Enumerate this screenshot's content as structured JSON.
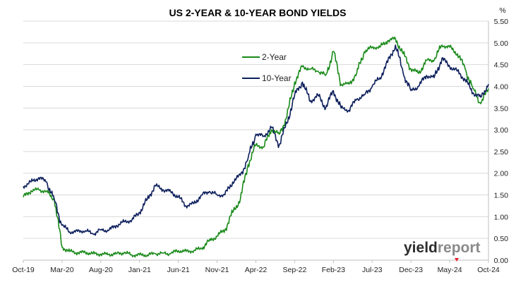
{
  "chart_data": {
    "type": "line",
    "title": "US 2-YEAR & 10-YEAR BOND YIELDS",
    "y_unit": "%",
    "ylim": [
      0,
      5.5
    ],
    "y_ticks": [
      "0.00",
      "0.50",
      "1.00",
      "1.50",
      "2.00",
      "2.50",
      "3.00",
      "3.50",
      "4.00",
      "4.50",
      "5.00",
      "5.50"
    ],
    "y_axis_side": "right",
    "grid": "horizontal",
    "x_tick_labels": [
      "Oct-19",
      "Mar-20",
      "Aug-20",
      "Jan-21",
      "Jun-21",
      "Nov-21",
      "Apr-22",
      "Sep-22",
      "Feb-23",
      "Jul-23",
      "Dec-23",
      "May-24",
      "Oct-24"
    ],
    "legend_position": "upper-center",
    "series": [
      {
        "name": "2-Year",
        "color": "#1a8a1a",
        "points": [
          [
            "Oct-19",
            1.45
          ],
          [
            "Nov-19",
            1.6
          ],
          [
            "Dec-19",
            1.62
          ],
          [
            "Jan-20",
            1.58
          ],
          [
            "Feb-20",
            1.4
          ],
          [
            "Mar-20",
            0.3
          ],
          [
            "Apr-20",
            0.2
          ],
          [
            "May-20",
            0.17
          ],
          [
            "Jun-20",
            0.18
          ],
          [
            "Jul-20",
            0.15
          ],
          [
            "Aug-20",
            0.14
          ],
          [
            "Sep-20",
            0.13
          ],
          [
            "Oct-20",
            0.15
          ],
          [
            "Nov-20",
            0.17
          ],
          [
            "Dec-20",
            0.12
          ],
          [
            "Jan-21",
            0.12
          ],
          [
            "Feb-21",
            0.12
          ],
          [
            "Mar-21",
            0.15
          ],
          [
            "Apr-21",
            0.16
          ],
          [
            "May-21",
            0.15
          ],
          [
            "Jun-21",
            0.22
          ],
          [
            "Jul-21",
            0.2
          ],
          [
            "Aug-21",
            0.22
          ],
          [
            "Sep-21",
            0.27
          ],
          [
            "Oct-21",
            0.45
          ],
          [
            "Nov-21",
            0.55
          ],
          [
            "Dec-21",
            0.7
          ],
          [
            "Jan-22",
            1.1
          ],
          [
            "Feb-22",
            1.4
          ],
          [
            "Mar-22",
            2.2
          ],
          [
            "Apr-22",
            2.65
          ],
          [
            "May-22",
            2.6
          ],
          [
            "Jun-22",
            3.0
          ],
          [
            "Jul-22",
            2.9
          ],
          [
            "Aug-22",
            3.3
          ],
          [
            "Sep-22",
            4.1
          ],
          [
            "Oct-22",
            4.45
          ],
          [
            "Nov-22",
            4.4
          ],
          [
            "Dec-22",
            4.35
          ],
          [
            "Jan-23",
            4.25
          ],
          [
            "Feb-23",
            4.8
          ],
          [
            "Mar-23",
            4.05
          ],
          [
            "Apr-23",
            4.05
          ],
          [
            "May-23",
            4.3
          ],
          [
            "Jun-23",
            4.8
          ],
          [
            "Jul-23",
            4.9
          ],
          [
            "Aug-23",
            4.9
          ],
          [
            "Sep-23",
            5.05
          ],
          [
            "Oct-23",
            5.1
          ],
          [
            "Nov-23",
            4.75
          ],
          [
            "Dec-23",
            4.4
          ],
          [
            "Jan-24",
            4.3
          ],
          [
            "Feb-24",
            4.6
          ],
          [
            "Mar-24",
            4.6
          ],
          [
            "Apr-24",
            4.95
          ],
          [
            "May-24",
            4.9
          ],
          [
            "Jun-24",
            4.75
          ],
          [
            "Jul-24",
            4.4
          ],
          [
            "Aug-24",
            3.95
          ],
          [
            "Sep-24",
            3.6
          ],
          [
            "Oct-24",
            3.95
          ]
        ]
      },
      {
        "name": "10-Year",
        "color": "#0d1f5c",
        "points": [
          [
            "Oct-19",
            1.7
          ],
          [
            "Nov-19",
            1.8
          ],
          [
            "Dec-19",
            1.9
          ],
          [
            "Jan-20",
            1.8
          ],
          [
            "Feb-20",
            1.4
          ],
          [
            "Mar-20",
            0.8
          ],
          [
            "Apr-20",
            0.65
          ],
          [
            "May-20",
            0.66
          ],
          [
            "Jun-20",
            0.68
          ],
          [
            "Jul-20",
            0.6
          ],
          [
            "Aug-20",
            0.7
          ],
          [
            "Sep-20",
            0.68
          ],
          [
            "Oct-20",
            0.8
          ],
          [
            "Nov-20",
            0.88
          ],
          [
            "Dec-20",
            0.92
          ],
          [
            "Jan-21",
            1.1
          ],
          [
            "Feb-21",
            1.4
          ],
          [
            "Mar-21",
            1.72
          ],
          [
            "Apr-21",
            1.62
          ],
          [
            "May-21",
            1.58
          ],
          [
            "Jun-21",
            1.45
          ],
          [
            "Jul-21",
            1.25
          ],
          [
            "Aug-21",
            1.3
          ],
          [
            "Sep-21",
            1.5
          ],
          [
            "Oct-21",
            1.58
          ],
          [
            "Nov-21",
            1.5
          ],
          [
            "Dec-21",
            1.5
          ],
          [
            "Jan-22",
            1.8
          ],
          [
            "Feb-22",
            1.95
          ],
          [
            "Mar-22",
            2.35
          ],
          [
            "Apr-22",
            2.9
          ],
          [
            "May-22",
            2.85
          ],
          [
            "Jun-22",
            3.05
          ],
          [
            "Jul-22",
            2.65
          ],
          [
            "Aug-22",
            3.15
          ],
          [
            "Sep-22",
            3.8
          ],
          [
            "Oct-22",
            4.1
          ],
          [
            "Nov-22",
            3.65
          ],
          [
            "Dec-22",
            3.8
          ],
          [
            "Jan-23",
            3.5
          ],
          [
            "Feb-23",
            3.9
          ],
          [
            "Mar-23",
            3.5
          ],
          [
            "Apr-23",
            3.45
          ],
          [
            "May-23",
            3.7
          ],
          [
            "Jun-23",
            3.8
          ],
          [
            "Jul-23",
            4.0
          ],
          [
            "Aug-23",
            4.2
          ],
          [
            "Sep-23",
            4.55
          ],
          [
            "Oct-23",
            4.95
          ],
          [
            "Nov-23",
            4.3
          ],
          [
            "Dec-23",
            3.9
          ],
          [
            "Jan-24",
            4.0
          ],
          [
            "Feb-24",
            4.25
          ],
          [
            "Mar-24",
            4.2
          ],
          [
            "Apr-24",
            4.65
          ],
          [
            "May-24",
            4.45
          ],
          [
            "Jun-24",
            4.35
          ],
          [
            "Jul-24",
            4.15
          ],
          [
            "Aug-24",
            3.85
          ],
          [
            "Sep-24",
            3.75
          ],
          [
            "Oct-24",
            4.05
          ]
        ]
      }
    ]
  },
  "watermark": {
    "part1": "yield",
    "part2": "report",
    "accent_color": "#e8202a"
  }
}
